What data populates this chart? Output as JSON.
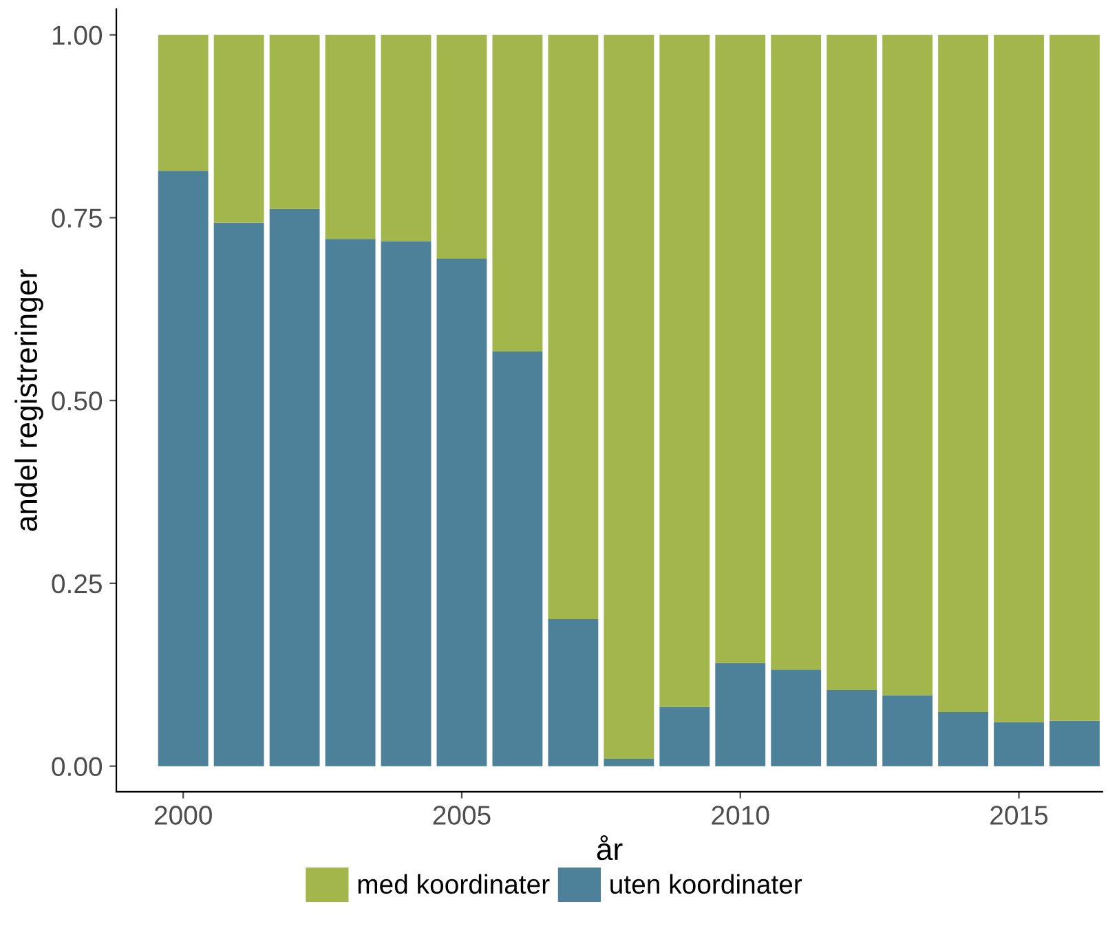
{
  "chart_data": {
    "type": "bar",
    "stacked": true,
    "xlabel": "år",
    "ylabel": "andel registreringer",
    "x": [
      2000,
      2001,
      2002,
      2003,
      2004,
      2005,
      2006,
      2007,
      2008,
      2009,
      2010,
      2011,
      2012,
      2013,
      2014,
      2015,
      2016
    ],
    "series": [
      {
        "name": "uten koordinater",
        "color": "#4d8199",
        "values": [
          0.814,
          0.743,
          0.762,
          0.721,
          0.718,
          0.694,
          0.567,
          0.201,
          0.01,
          0.081,
          0.141,
          0.132,
          0.104,
          0.097,
          0.074,
          0.06,
          0.062
        ]
      },
      {
        "name": "med koordinater",
        "color": "#a3b64b",
        "values": [
          0.186,
          0.257,
          0.238,
          0.279,
          0.282,
          0.306,
          0.433,
          0.799,
          0.99,
          0.919,
          0.859,
          0.868,
          0.896,
          0.903,
          0.926,
          0.94,
          0.938
        ]
      }
    ],
    "xlim": [
      1998.8,
      2016.5
    ],
    "xticks": [
      2000,
      2005,
      2010,
      2015
    ],
    "ylim": [
      -0.035,
      1.035
    ],
    "yticks": [
      {
        "value": 0,
        "label": "0.00"
      },
      {
        "value": 0.25,
        "label": "0.25"
      },
      {
        "value": 0.5,
        "label": "0.50"
      },
      {
        "value": 0.75,
        "label": "0.75"
      },
      {
        "value": 1,
        "label": "1.00"
      }
    ],
    "grid": false,
    "legend": "bottom"
  }
}
